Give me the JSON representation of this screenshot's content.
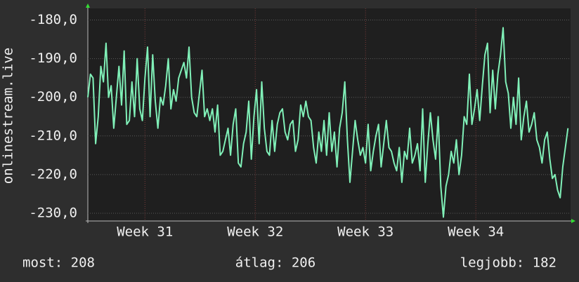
{
  "chart_data": {
    "type": "line",
    "y_label": "onlinestream.live",
    "color": "#80f0b8",
    "grid": true,
    "ylim": [
      -232,
      -177
    ],
    "yticks": [
      {
        "value": -180,
        "label": "-180,0"
      },
      {
        "value": -190,
        "label": "-190,0"
      },
      {
        "value": -200,
        "label": "-200,0"
      },
      {
        "value": -210,
        "label": "-210,0"
      },
      {
        "value": -220,
        "label": "-220,0"
      },
      {
        "value": -230,
        "label": "-230,0"
      }
    ],
    "xlim": [
      0,
      186
    ],
    "xticks": [
      {
        "value": 22,
        "label": "Week 31"
      },
      {
        "value": 64.5,
        "label": "Week 32"
      },
      {
        "value": 107,
        "label": "Week 33"
      },
      {
        "value": 149.5,
        "label": "Week 34"
      }
    ],
    "values": [
      -200,
      -194,
      -195,
      -212,
      -205,
      -192,
      -196,
      -186,
      -200,
      -197,
      -208,
      -200,
      -192,
      -202,
      -188,
      -207,
      -206,
      -196,
      -205,
      -190,
      -203,
      -206,
      -195,
      -187,
      -205,
      -189,
      -201,
      -208,
      -200,
      -202,
      -197,
      -190,
      -203,
      -198,
      -201,
      -195,
      -193,
      -191,
      -195,
      -187,
      -200,
      -204,
      -205,
      -199,
      -193,
      -205,
      -203,
      -206,
      -203,
      -209,
      -202,
      -215,
      -214,
      -211,
      -208,
      -215,
      -207,
      -203,
      -217,
      -218,
      -212,
      -209,
      -201,
      -216,
      -205,
      -198,
      -212,
      -196,
      -208,
      -214,
      -215,
      -206,
      -214,
      -207,
      -204,
      -203,
      -209,
      -211,
      -207,
      -206,
      -214,
      -211,
      -202,
      -205,
      -201,
      -205,
      -206,
      -213,
      -217,
      -209,
      -214,
      -206,
      -215,
      -204,
      -214,
      -209,
      -218,
      -208,
      -204,
      -196,
      -211,
      -222,
      -214,
      -206,
      -211,
      -215,
      -213,
      -217,
      -207,
      -219,
      -214,
      -210,
      -207,
      -218,
      -212,
      -206,
      -213,
      -214,
      -217,
      -219,
      -213,
      -222,
      -214,
      -216,
      -208,
      -217,
      -215,
      -212,
      -219,
      -203,
      -222,
      -212,
      -204,
      -211,
      -216,
      -205,
      -223,
      -231,
      -223,
      -220,
      -214,
      -217,
      -211,
      -220,
      -215,
      -205,
      -207,
      -194,
      -207,
      -203,
      -198,
      -206,
      -197,
      -189,
      -186,
      -204,
      -193,
      -203,
      -194,
      -189,
      -182,
      -196,
      -199,
      -208,
      -200,
      -207,
      -195,
      -211,
      -205,
      -201,
      -209,
      -207,
      -204,
      -211,
      -213,
      -217,
      -211,
      -209,
      -216,
      -221,
      -220,
      -224,
      -226,
      -218,
      -213,
      -208
    ],
    "stats": [
      "most: 208",
      "átlag: 206",
      "legjobb: 182"
    ]
  }
}
